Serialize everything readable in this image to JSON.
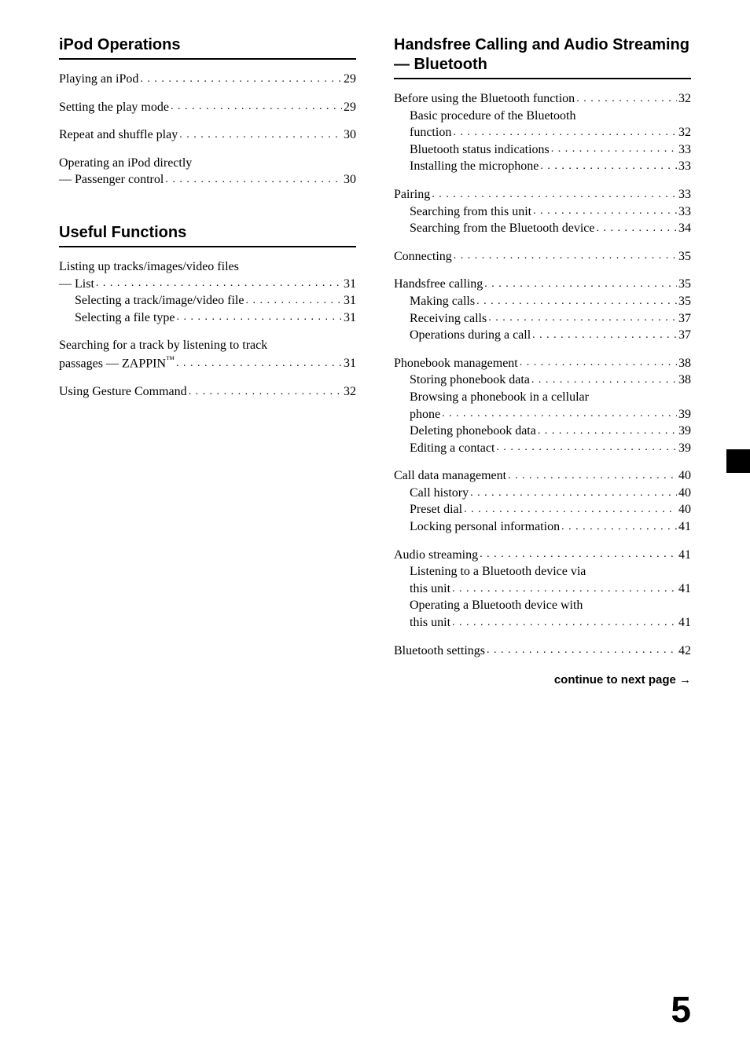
{
  "page_number": "5",
  "continue_text": "continue to next page →",
  "left": {
    "sections": [
      {
        "title": "iPod Operations",
        "groups": [
          [
            {
              "label": "Playing an iPod",
              "page": "29",
              "indent": 0
            }
          ],
          [
            {
              "label": "Setting the play mode",
              "page": "29",
              "indent": 0
            }
          ],
          [
            {
              "label": "Repeat and shuffle play",
              "page": "30",
              "indent": 0
            }
          ],
          [
            {
              "label": "Operating an iPod directly",
              "indent": 0
            },
            {
              "label": "— Passenger control",
              "page": "30",
              "indent": 0
            }
          ]
        ]
      },
      {
        "title": "Useful Functions",
        "groups": [
          [
            {
              "label": "Listing up tracks/images/video files",
              "indent": 0
            },
            {
              "label": "— List",
              "page": "31",
              "indent": 0
            },
            {
              "label": "Selecting a track/image/video file",
              "page": "31",
              "indent": 1
            },
            {
              "label": "Selecting a file type",
              "page": "31",
              "indent": 1
            }
          ],
          [
            {
              "label": "Searching for a track by listening to track",
              "indent": 0
            },
            {
              "label": "passages — ZAPPIN™",
              "page": "31",
              "indent": 0
            }
          ],
          [
            {
              "label": "Using Gesture Command",
              "page": "32",
              "indent": 0
            }
          ]
        ]
      }
    ]
  },
  "right": {
    "sections": [
      {
        "title": "Handsfree Calling and Audio Streaming — Bluetooth",
        "groups": [
          [
            {
              "label": "Before using the Bluetooth function",
              "page": "32",
              "indent": 0
            },
            {
              "label": "Basic procedure of the Bluetooth",
              "indent": 1
            },
            {
              "label": "function",
              "page": "32",
              "indent": 1
            },
            {
              "label": "Bluetooth status indications",
              "page": "33",
              "indent": 1
            },
            {
              "label": "Installing the microphone",
              "page": "33",
              "indent": 1
            }
          ],
          [
            {
              "label": "Pairing",
              "page": "33",
              "indent": 0
            },
            {
              "label": "Searching from this unit",
              "page": "33",
              "indent": 1
            },
            {
              "label": "Searching from the Bluetooth device",
              "page": "34",
              "indent": 1
            }
          ],
          [
            {
              "label": "Connecting",
              "page": "35",
              "indent": 0
            }
          ],
          [
            {
              "label": "Handsfree calling",
              "page": "35",
              "indent": 0
            },
            {
              "label": "Making calls",
              "page": "35",
              "indent": 1
            },
            {
              "label": "Receiving calls",
              "page": "37",
              "indent": 1
            },
            {
              "label": "Operations during a call",
              "page": "37",
              "indent": 1
            }
          ],
          [
            {
              "label": "Phonebook management",
              "page": "38",
              "indent": 0
            },
            {
              "label": "Storing phonebook data",
              "page": "38",
              "indent": 1
            },
            {
              "label": "Browsing a phonebook in a cellular",
              "indent": 1
            },
            {
              "label": "phone",
              "page": "39",
              "indent": 1
            },
            {
              "label": "Deleting phonebook data",
              "page": "39",
              "indent": 1
            },
            {
              "label": "Editing a contact",
              "page": "39",
              "indent": 1
            }
          ],
          [
            {
              "label": "Call data management",
              "page": "40",
              "indent": 0
            },
            {
              "label": "Call history",
              "page": "40",
              "indent": 1
            },
            {
              "label": "Preset dial",
              "page": "40",
              "indent": 1
            },
            {
              "label": "Locking personal information",
              "page": "41",
              "indent": 1
            }
          ],
          [
            {
              "label": "Audio streaming",
              "page": "41",
              "indent": 0
            },
            {
              "label": "Listening to a Bluetooth device via",
              "indent": 1
            },
            {
              "label": "this unit",
              "page": "41",
              "indent": 1
            },
            {
              "label": "Operating a Bluetooth device with",
              "indent": 1
            },
            {
              "label": "this unit",
              "page": "41",
              "indent": 1
            }
          ],
          [
            {
              "label": "Bluetooth settings",
              "page": "42",
              "indent": 0
            }
          ]
        ]
      }
    ]
  }
}
